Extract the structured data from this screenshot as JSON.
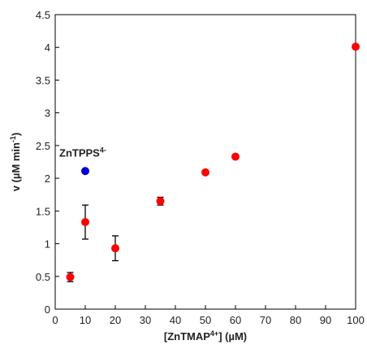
{
  "chart_data": {
    "type": "scatter",
    "xlabel": {
      "pre": "[ZnTMAP",
      "sup": "4+",
      "post": "] (µM)"
    },
    "ylabel": {
      "pre": "v  (µM min",
      "sup": "-1",
      "post": ")"
    },
    "xlim": [
      0,
      100
    ],
    "ylim": [
      0,
      4.5
    ],
    "xticks": [
      "0",
      "10",
      "20",
      "30",
      "40",
      "50",
      "60",
      "70",
      "80",
      "90",
      "100"
    ],
    "yticks": [
      "0",
      "0.5",
      "1",
      "1.5",
      "2",
      "2.5",
      "3",
      "3.5",
      "4",
      "4.5"
    ],
    "grid": false,
    "series": [
      {
        "color": "#ff0000",
        "points": [
          {
            "x": 5,
            "y": 0.49,
            "err": 0.07
          },
          {
            "x": 10,
            "y": 1.33,
            "err": 0.26
          },
          {
            "x": 20,
            "y": 0.93,
            "err": 0.19
          },
          {
            "x": 35,
            "y": 1.65,
            "err": 0.06
          },
          {
            "x": 50,
            "y": 2.09,
            "err": 0
          },
          {
            "x": 60,
            "y": 2.33,
            "err": 0
          },
          {
            "x": 100,
            "y": 4.01,
            "err": 0
          }
        ]
      },
      {
        "color": "#0000dd",
        "points": [
          {
            "x": 10,
            "y": 2.11,
            "xerr": 0.8
          }
        ]
      }
    ],
    "annotations": [
      {
        "pre": "ZnTPPS",
        "sup": "4-"
      }
    ]
  }
}
